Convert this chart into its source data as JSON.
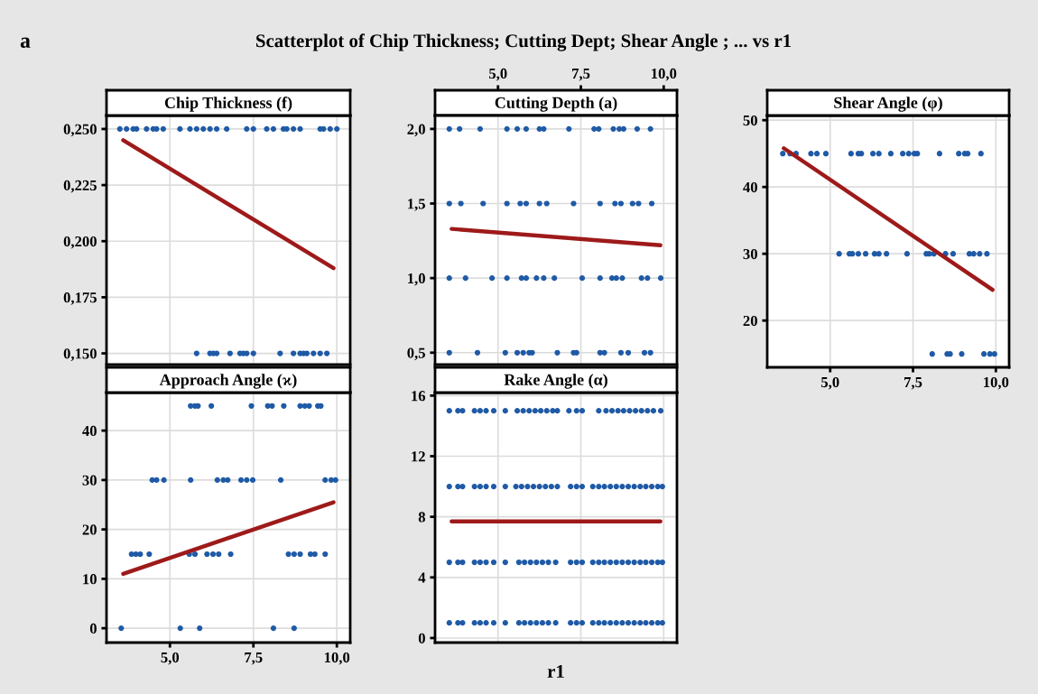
{
  "chart_data": [
    {
      "type": "other",
      "title": "Scatterplot of Chip Thickness; Cutting Dept; Shear Angle ; ... vs r1",
      "annotations": [
        "a"
      ]
    },
    {
      "type": "scatter",
      "title": "Chip Thickness (f)",
      "marker": "circle",
      "grid": true,
      "tick_labels": "y",
      "xlim": [
        3.1,
        10.4
      ],
      "xticks": [
        {
          "value": 5,
          "label": null
        },
        {
          "value": 7.5,
          "label": null
        },
        {
          "value": 10,
          "label": null
        }
      ],
      "ylim": [
        0.145,
        0.256
      ],
      "yticks": [
        {
          "value": 0.15,
          "label": "0,150"
        },
        {
          "value": 0.175,
          "label": "0,175"
        },
        {
          "value": 0.2,
          "label": "0,200"
        },
        {
          "value": 0.225,
          "label": "0,225"
        },
        {
          "value": 0.25,
          "label": "0,250"
        }
      ],
      "series": [
        {
          "color": "#1f5aa6",
          "x": [
            3.5,
            3.7,
            3.9,
            4.0,
            4.3,
            4.5,
            4.6,
            4.8,
            5.3,
            5.6,
            5.8,
            6.0,
            6.2,
            6.4,
            6.7,
            7.3,
            7.5,
            7.9,
            8.1,
            8.4,
            8.5,
            8.7,
            8.9,
            9.5,
            9.6,
            9.8,
            10.0
          ],
          "values": [
            0.25,
            0.25,
            0.25,
            0.25,
            0.25,
            0.25,
            0.25,
            0.25,
            0.25,
            0.25,
            0.25,
            0.25,
            0.25,
            0.25,
            0.25,
            0.25,
            0.25,
            0.25,
            0.25,
            0.25,
            0.25,
            0.25,
            0.25,
            0.25,
            0.25,
            0.25,
            0.25
          ]
        },
        {
          "color": "#1f5aa6",
          "x": [
            5.8,
            6.2,
            6.3,
            6.4,
            6.8,
            7.1,
            7.2,
            7.3,
            7.5,
            8.3,
            8.7,
            8.9,
            9.0,
            9.1,
            9.3,
            9.5,
            9.7
          ],
          "values": [
            0.15,
            0.15,
            0.15,
            0.15,
            0.15,
            0.15,
            0.15,
            0.15,
            0.15,
            0.15,
            0.15,
            0.15,
            0.15,
            0.15,
            0.15,
            0.15,
            0.15
          ]
        },
        {
          "type": "line",
          "marker": "none",
          "color": "#9e1a1a",
          "x": [
            3.6,
            9.9
          ],
          "values": [
            0.245,
            0.188
          ]
        }
      ]
    },
    {
      "type": "scatter",
      "title": "Cutting Depth (a)",
      "marker": "circle",
      "grid": true,
      "xlim": [
        3.1,
        10.4
      ],
      "xticks": [
        {
          "value": 5,
          "label": "5,0"
        },
        {
          "value": 7.5,
          "label": "7,5"
        },
        {
          "value": 10,
          "label": "10,0"
        }
      ],
      "ylim": [
        0.42,
        2.09
      ],
      "yticks": [
        {
          "value": 0.5,
          "label": "0,5"
        },
        {
          "value": 1.0,
          "label": "1,0"
        },
        {
          "value": 1.5,
          "label": "1,5"
        },
        {
          "value": 2.0,
          "label": "2,0"
        }
      ],
      "series": [
        {
          "color": "#1f5aa6",
          "x": [
            3.53,
            3.84,
            4.46,
            5.27,
            5.58,
            5.85,
            6.25,
            6.38,
            7.14,
            7.9,
            8.04,
            8.48,
            8.66,
            8.79,
            9.2,
            9.6
          ],
          "values": [
            2,
            2,
            2,
            2,
            2,
            2,
            2,
            2,
            2,
            2,
            2,
            2,
            2,
            2,
            2,
            2
          ]
        },
        {
          "color": "#1f5aa6",
          "x": [
            3.53,
            3.88,
            4.55,
            5.27,
            5.67,
            5.85,
            6.25,
            6.47,
            7.28,
            8.08,
            8.53,
            8.71,
            9.06,
            9.24,
            9.64
          ],
          "values": [
            1.5,
            1.5,
            1.5,
            1.5,
            1.5,
            1.5,
            1.5,
            1.5,
            1.5,
            1.5,
            1.5,
            1.5,
            1.5,
            1.5,
            1.5
          ]
        },
        {
          "color": "#1f5aa6",
          "x": [
            3.53,
            4.02,
            4.82,
            5.27,
            5.71,
            5.85,
            6.16,
            6.38,
            6.7,
            7.54,
            8.08,
            8.44,
            8.57,
            8.75,
            9.33,
            9.51,
            9.91
          ],
          "values": [
            1,
            1,
            1,
            1,
            1,
            1,
            1,
            1,
            1,
            1,
            1,
            1,
            1,
            1,
            1,
            1,
            1
          ]
        },
        {
          "color": "#1f5aa6",
          "x": [
            3.53,
            4.38,
            5.22,
            5.58,
            5.76,
            5.94,
            6.03,
            6.79,
            7.28,
            7.37,
            8.08,
            8.21,
            8.71,
            8.93,
            9.42,
            9.6
          ],
          "values": [
            0.5,
            0.5,
            0.5,
            0.5,
            0.5,
            0.5,
            0.5,
            0.5,
            0.5,
            0.5,
            0.5,
            0.5,
            0.5,
            0.5,
            0.5,
            0.5
          ]
        },
        {
          "type": "line",
          "marker": "none",
          "color": "#9e1a1a",
          "x": [
            3.6,
            9.9
          ],
          "values": [
            1.33,
            1.22
          ]
        }
      ]
    },
    {
      "type": "scatter",
      "title": "Shear Angle (φ)",
      "marker": "circle",
      "grid": true,
      "xlim": [
        3.1,
        10.4
      ],
      "xticks": [
        {
          "value": 5,
          "label": "5,0"
        },
        {
          "value": 7.5,
          "label": "7,5"
        },
        {
          "value": 10,
          "label": "10,0"
        }
      ],
      "ylim": [
        13,
        50.7
      ],
      "yticks": [
        20,
        30,
        40,
        50
      ],
      "series": [
        {
          "color": "#1f5aa6",
          "x": [
            3.57,
            3.79,
            3.97,
            4.42,
            4.6,
            4.87,
            5.63,
            5.85,
            5.94,
            6.29,
            6.47,
            6.83,
            7.19,
            7.37,
            7.54,
            7.63,
            8.3,
            8.88,
            9.06,
            9.15,
            9.55
          ],
          "values": [
            45,
            45,
            45,
            45,
            45,
            45,
            45,
            45,
            45,
            45,
            45,
            45,
            45,
            45,
            45,
            45,
            45,
            45,
            45,
            45,
            45
          ]
        },
        {
          "color": "#1f5aa6",
          "x": [
            5.27,
            5.58,
            5.67,
            5.85,
            6.07,
            6.34,
            6.47,
            6.7,
            7.32,
            7.9,
            7.99,
            8.13,
            8.48,
            8.71,
            9.2,
            9.33,
            9.51,
            9.73
          ],
          "values": [
            30,
            30,
            30,
            30,
            30,
            30,
            30,
            30,
            30,
            30,
            30,
            30,
            30,
            30,
            30,
            30,
            30,
            30
          ]
        },
        {
          "color": "#1f5aa6",
          "x": [
            8.08,
            8.53,
            8.62,
            8.97,
            9.64,
            9.82,
            9.96
          ],
          "values": [
            15,
            15,
            15,
            15,
            15,
            15,
            15
          ]
        },
        {
          "type": "line",
          "marker": "none",
          "color": "#9e1a1a",
          "x": [
            3.6,
            9.9
          ],
          "values": [
            45.8,
            24.6
          ]
        }
      ]
    },
    {
      "type": "scatter",
      "title": "Approach Angle (ϰ)",
      "marker": "circle",
      "grid": true,
      "xlim": [
        3.1,
        10.4
      ],
      "xticks": [
        {
          "value": 5,
          "label": "5,0"
        },
        {
          "value": 7.5,
          "label": "7,5"
        },
        {
          "value": 10,
          "label": "10,0"
        }
      ],
      "ylim": [
        -2.9,
        47.7
      ],
      "yticks": [
        0,
        10,
        20,
        30,
        40
      ],
      "series": [
        {
          "color": "#1f5aa6",
          "x": [
            5.62,
            5.75,
            5.84,
            6.24,
            7.44,
            7.93,
            8.06,
            8.41,
            8.9,
            9.04,
            9.17,
            9.43,
            9.52
          ],
          "values": [
            45,
            45,
            45,
            45,
            45,
            45,
            45,
            45,
            45,
            45,
            45,
            45,
            45
          ]
        },
        {
          "color": "#1f5aa6",
          "x": [
            4.47,
            4.6,
            4.82,
            5.62,
            6.42,
            6.6,
            6.73,
            7.13,
            7.3,
            7.48,
            8.32,
            9.65,
            9.83,
            9.96
          ],
          "values": [
            30,
            30,
            30,
            30,
            30,
            30,
            30,
            30,
            30,
            30,
            30,
            30,
            30,
            30
          ]
        },
        {
          "color": "#1f5aa6",
          "x": [
            3.85,
            3.98,
            4.11,
            4.38,
            5.58,
            5.75,
            6.11,
            6.29,
            6.46,
            6.82,
            8.55,
            8.72,
            8.9,
            9.21,
            9.34,
            9.65
          ],
          "values": [
            15,
            15,
            15,
            15,
            15,
            15,
            15,
            15,
            15,
            15,
            15,
            15,
            15,
            15,
            15,
            15
          ]
        },
        {
          "color": "#1f5aa6",
          "x": [
            3.54,
            5.31,
            5.89,
            8.1,
            8.72
          ],
          "values": [
            0,
            0,
            0,
            0,
            0
          ]
        },
        {
          "type": "line",
          "marker": "none",
          "color": "#9e1a1a",
          "x": [
            3.6,
            9.9
          ],
          "values": [
            11,
            25.5
          ]
        }
      ]
    },
    {
      "type": "scatter",
      "title": "Rake Angle (α)",
      "xlabel": "r1",
      "marker": "circle",
      "grid": true,
      "tick_labels": "y",
      "xlim": [
        3.1,
        10.4
      ],
      "xticks": [
        {
          "value": 5,
          "label": null
        },
        {
          "value": 7.5,
          "label": null
        },
        {
          "value": 10,
          "label": null
        }
      ],
      "ylim": [
        -0.3,
        16.2
      ],
      "yticks": [
        0,
        4,
        8,
        12,
        16
      ],
      "series": [
        {
          "color": "#1f5aa6",
          "x": [
            3.53,
            3.79,
            3.93,
            4.29,
            4.46,
            4.64,
            4.87,
            5.22,
            5.58,
            5.76,
            5.94,
            6.12,
            6.29,
            6.47,
            6.65,
            6.79,
            7.14,
            7.37,
            7.54,
            8.04,
            8.26,
            8.44,
            8.62,
            8.79,
            8.97,
            9.15,
            9.33,
            9.51,
            9.69,
            9.91
          ],
          "values": [
            15,
            15,
            15,
            15,
            15,
            15,
            15,
            15,
            15,
            15,
            15,
            15,
            15,
            15,
            15,
            15,
            15,
            15,
            15,
            15,
            15,
            15,
            15,
            15,
            15,
            15,
            15,
            15,
            15,
            15
          ]
        },
        {
          "color": "#1f5aa6",
          "x": [
            3.53,
            3.79,
            3.93,
            4.29,
            4.46,
            4.64,
            4.87,
            5.22,
            5.54,
            5.71,
            5.89,
            6.07,
            6.25,
            6.43,
            6.61,
            6.79,
            7.19,
            7.37,
            7.54,
            7.86,
            8.04,
            8.21,
            8.39,
            8.57,
            8.75,
            8.93,
            9.11,
            9.29,
            9.46,
            9.64,
            9.82,
            9.96
          ],
          "values": [
            10,
            10,
            10,
            10,
            10,
            10,
            10,
            10,
            10,
            10,
            10,
            10,
            10,
            10,
            10,
            10,
            10,
            10,
            10,
            10,
            10,
            10,
            10,
            10,
            10,
            10,
            10,
            10,
            10,
            10,
            10,
            10
          ]
        },
        {
          "color": "#1f5aa6",
          "x": [
            3.53,
            3.79,
            3.93,
            4.29,
            4.46,
            4.64,
            4.87,
            5.22,
            5.63,
            5.8,
            5.98,
            6.16,
            6.34,
            6.52,
            6.74,
            7.19,
            7.37,
            7.54,
            7.86,
            8.04,
            8.21,
            8.39,
            8.57,
            8.75,
            8.93,
            9.11,
            9.29,
            9.46,
            9.64,
            9.82,
            9.96
          ],
          "values": [
            5,
            5,
            5,
            5,
            5,
            5,
            5,
            5,
            5,
            5,
            5,
            5,
            5,
            5,
            5,
            5,
            5,
            5,
            5,
            5,
            5,
            5,
            5,
            5,
            5,
            5,
            5,
            5,
            5,
            5,
            5
          ]
        },
        {
          "color": "#1f5aa6",
          "x": [
            3.53,
            3.79,
            3.93,
            4.29,
            4.46,
            4.64,
            4.87,
            5.22,
            5.63,
            5.8,
            5.98,
            6.16,
            6.34,
            6.52,
            6.74,
            7.19,
            7.37,
            7.54,
            7.86,
            8.04,
            8.21,
            8.39,
            8.57,
            8.75,
            8.93,
            9.11,
            9.29,
            9.46,
            9.64,
            9.82,
            9.96
          ],
          "values": [
            1,
            1,
            1,
            1,
            1,
            1,
            1,
            1,
            1,
            1,
            1,
            1,
            1,
            1,
            1,
            1,
            1,
            1,
            1,
            1,
            1,
            1,
            1,
            1,
            1,
            1,
            1,
            1,
            1,
            1,
            1
          ]
        },
        {
          "type": "line",
          "marker": "none",
          "color": "#9e1a1a",
          "x": [
            3.6,
            9.9
          ],
          "values": [
            7.7,
            7.7
          ]
        }
      ]
    }
  ]
}
